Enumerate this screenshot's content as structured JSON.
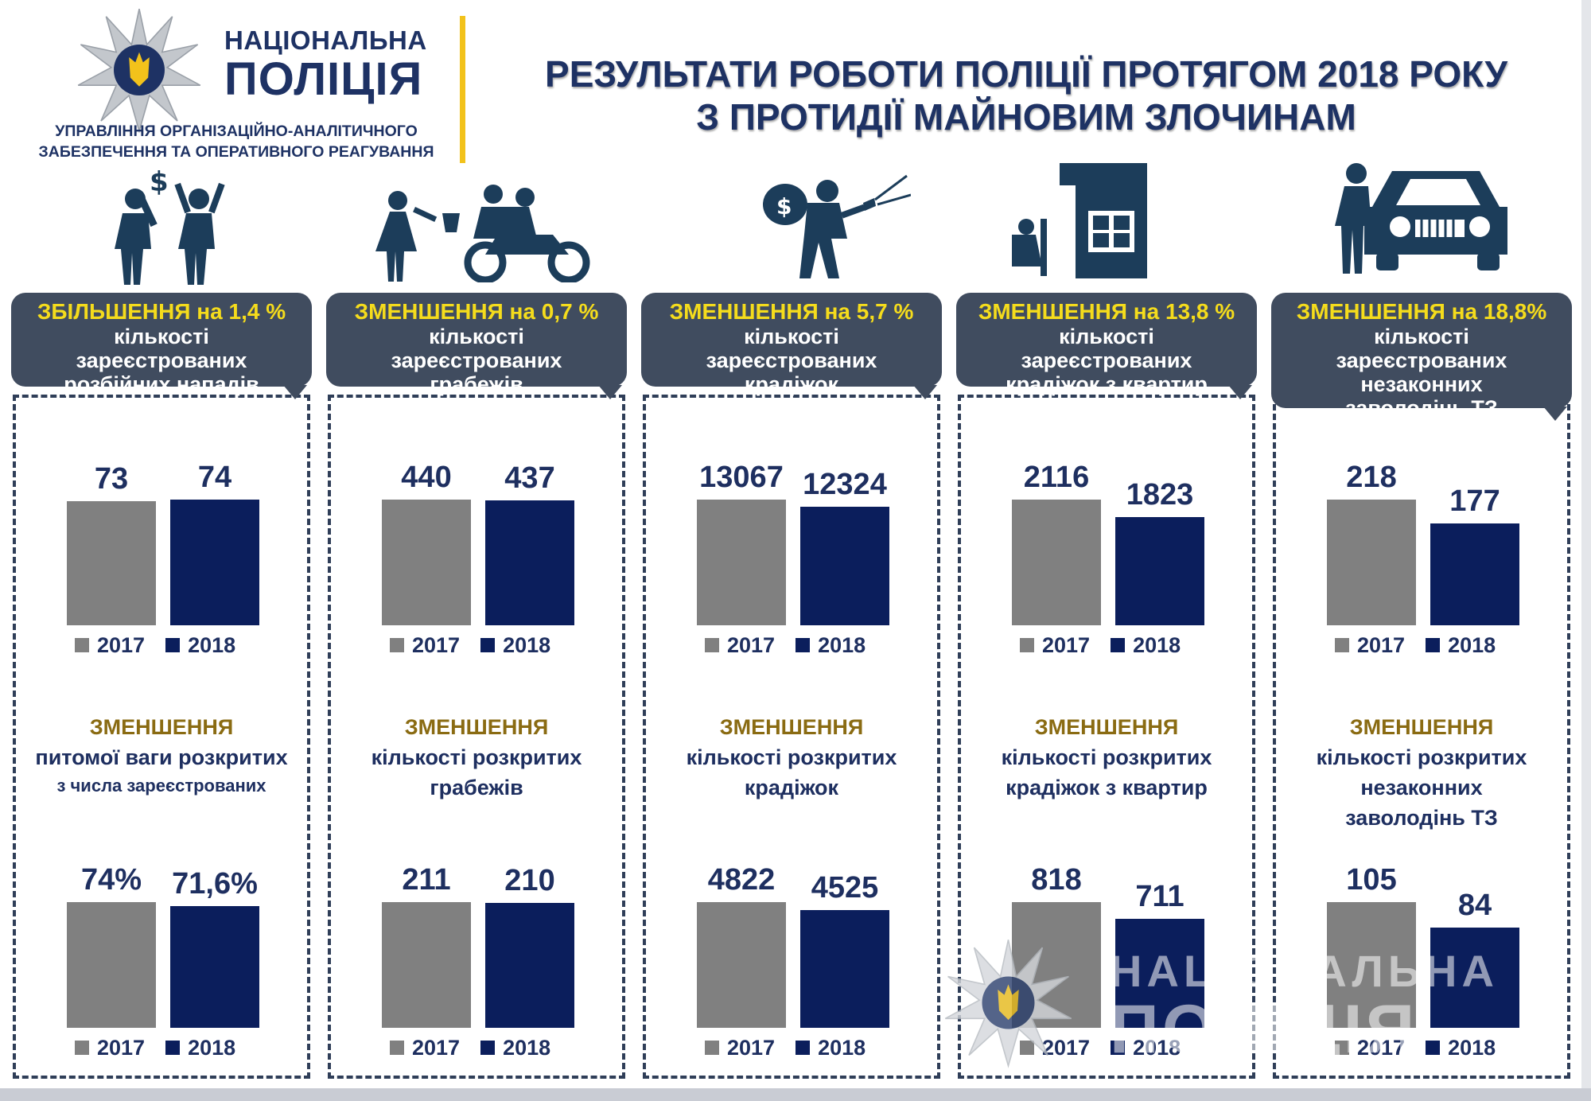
{
  "header": {
    "org_line1": "НАЦІОНАЛЬНА",
    "org_line2": "ПОЛІЦІЯ",
    "dept_line1": "УПРАВЛІННЯ ОРГАНІЗАЦІЙНО-АНАЛІТИЧНОГО",
    "dept_line2": "ЗАБЕЗПЕЧЕННЯ ТА ОПЕРАТИВНОГО РЕАГУВАННЯ",
    "title_line1": "РЕЗУЛЬТАТИ РОБОТИ ПОЛІЦІЇ ПРОТЯГОМ 2018 РОКУ",
    "title_line2": "З ПРОТИДІЇ МАЙНОВИМ ЗЛОЧИНАМ"
  },
  "watermark": {
    "line1": "НАЦІОНАЛЬНА",
    "line2": "ПОЛІЦІЯ"
  },
  "colors": {
    "y2017": "#808080",
    "y2018": "#0b1e5c",
    "banner": "#404c5f",
    "highlight": "#f5dc1c",
    "text": "#1e2f60",
    "accent": "#8a6b12"
  },
  "panels": [
    {
      "icon": "robbery-icon",
      "banner_highlight": "ЗБІЛЬШЕННЯ на 1,4 %",
      "banner_text": "кількості\nзареєстрованих\nрозбійних нападів",
      "mid_heading": "ЗМЕНШЕННЯ",
      "mid_line1": "питомої ваги розкритих",
      "mid_line2": "з числа зареєстрованих",
      "top_labels": [
        "73",
        "74"
      ],
      "bottom_labels": [
        "74%",
        "71,6%"
      ]
    },
    {
      "icon": "snatch-theft-icon",
      "banner_highlight": "ЗМЕНШЕННЯ на 0,7 %",
      "banner_text": "кількості\nзареєстрованих\nграбежів",
      "mid_heading": "ЗМЕНШЕННЯ",
      "mid_line1": "кількості розкритих",
      "mid_line2": "грабежів",
      "top_labels": [
        "440",
        "437"
      ],
      "bottom_labels": [
        "211",
        "210"
      ]
    },
    {
      "icon": "thief-with-bag-icon",
      "banner_highlight": "ЗМЕНШЕННЯ на 5,7 %",
      "banner_text": "кількості\nзареєстрованих\nкрадіжок",
      "mid_heading": "ЗМЕНШЕННЯ",
      "mid_line1": "кількості розкритих",
      "mid_line2": "крадіжок",
      "top_labels": [
        "13067",
        "12324"
      ],
      "bottom_labels": [
        "4822",
        "4525"
      ]
    },
    {
      "icon": "burglar-house-icon",
      "banner_highlight": "ЗМЕНШЕННЯ на 13,8 %",
      "banner_text": "кількості\nзареєстрованих\nкрадіжок з квартир",
      "mid_heading": "ЗМЕНШЕННЯ",
      "mid_line1": "кількості розкритих",
      "mid_line2": "крадіжок з квартир",
      "top_labels": [
        "2116",
        "1823"
      ],
      "bottom_labels": [
        "818",
        "711"
      ]
    },
    {
      "icon": "car-theft-icon",
      "banner_highlight": "ЗМЕНШЕННЯ на 18,8%",
      "banner_text": "кількості\nзареєстрованих\nнезаконних\nзаволодінь ТЗ",
      "mid_heading": "ЗМЕНШЕННЯ",
      "mid_line1": "кількості розкритих",
      "mid_line2": "незаконних",
      "mid_line3": "заволодінь ТЗ",
      "top_labels": [
        "218",
        "177"
      ],
      "bottom_labels": [
        "105",
        "84"
      ]
    }
  ],
  "chart_data": [
    {
      "type": "bar",
      "categories": [
        "2017",
        "2018"
      ],
      "values": [
        73,
        74
      ]
    },
    {
      "type": "bar",
      "categories": [
        "2017",
        "2018"
      ],
      "values": [
        74,
        71.6
      ]
    },
    {
      "type": "bar",
      "categories": [
        "2017",
        "2018"
      ],
      "values": [
        440,
        437
      ]
    },
    {
      "type": "bar",
      "categories": [
        "2017",
        "2018"
      ],
      "values": [
        211,
        210
      ]
    },
    {
      "type": "bar",
      "categories": [
        "2017",
        "2018"
      ],
      "values": [
        13067,
        12324
      ]
    },
    {
      "type": "bar",
      "categories": [
        "2017",
        "2018"
      ],
      "values": [
        4822,
        4525
      ]
    },
    {
      "type": "bar",
      "categories": [
        "2017",
        "2018"
      ],
      "values": [
        2116,
        1823
      ]
    },
    {
      "type": "bar",
      "categories": [
        "2017",
        "2018"
      ],
      "values": [
        818,
        711
      ]
    },
    {
      "type": "bar",
      "categories": [
        "2017",
        "2018"
      ],
      "values": [
        218,
        177
      ]
    },
    {
      "type": "bar",
      "categories": [
        "2017",
        "2018"
      ],
      "values": [
        105,
        84
      ]
    }
  ]
}
